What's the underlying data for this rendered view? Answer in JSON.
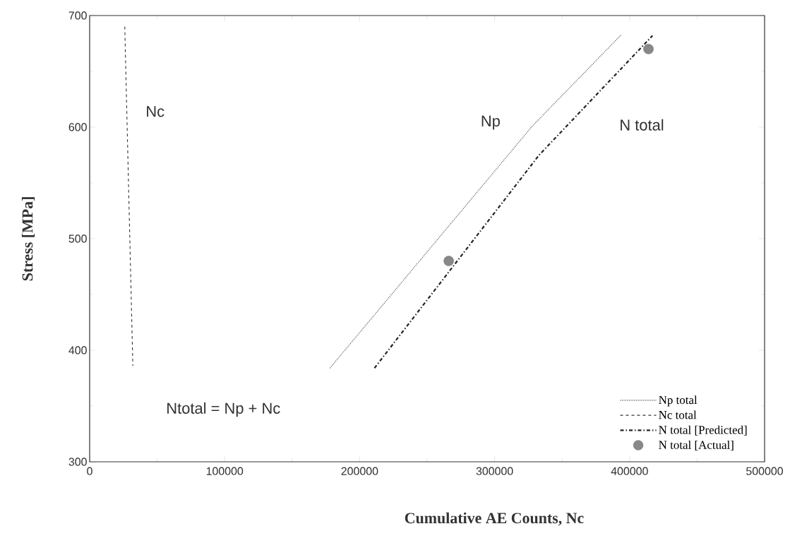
{
  "chart_data": {
    "type": "line",
    "xlabel": "Cumulative   AE  Counts,  Nc",
    "ylabel": "Stress  [MPa]",
    "xlim": [
      0,
      500000
    ],
    "ylim": [
      300,
      700
    ],
    "xticks": [
      0,
      100000,
      200000,
      300000,
      400000,
      500000
    ],
    "yticks": [
      300,
      400,
      500,
      600,
      700
    ],
    "grid": false,
    "legend": "bottom right",
    "series": [
      {
        "name": "Np total",
        "color": "#333333",
        "line_style": "dotted",
        "marker": "none",
        "x": [
          178000,
          328000,
          394000
        ],
        "values": [
          384,
          601,
          683
        ]
      },
      {
        "name": "Nc total",
        "color": "#333333",
        "line_style": "dashed",
        "marker": "none",
        "x": [
          26000,
          32000
        ],
        "values": [
          690,
          386
        ]
      },
      {
        "name": "N total [Predicted]",
        "color": "#222222",
        "line_style": "dashdot",
        "marker": "none",
        "x": [
          211000,
          333000,
          417000
        ],
        "values": [
          384,
          575,
          682
        ]
      },
      {
        "name": "N total [Actual]",
        "type": "scatter",
        "color": "#888888",
        "marker": "circle",
        "x": [
          266000,
          414000
        ],
        "values": [
          480,
          670
        ]
      }
    ],
    "annotations": [
      "Nc",
      "Np",
      "N  total",
      "Ntotal = Np + Nc"
    ]
  }
}
